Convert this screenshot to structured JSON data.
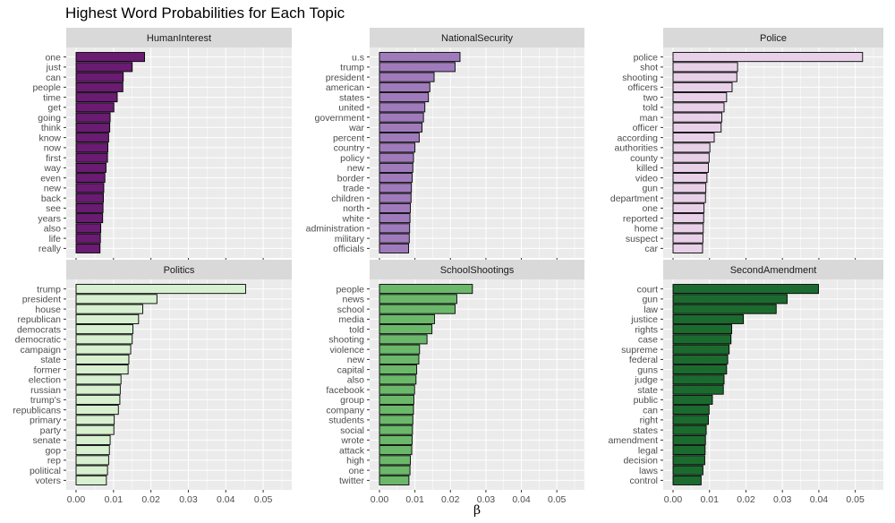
{
  "colors": {
    "panel_bg": "#ebebeb",
    "strip_bg": "#d9d9d9",
    "grid": "#ffffff",
    "bar_outline": "#000000",
    "topic_fills": {
      "HumanInterest": "#6a1b72",
      "NationalSecurity": "#a07bbc",
      "Police": "#e8d1e8",
      "Politics": "#d7f0d0",
      "SchoolShootings": "#6bb86a",
      "SecondAmendment": "#1b6b2f"
    }
  },
  "chart_data": {
    "type": "bar",
    "orientation": "horizontal",
    "title": "Highest Word Probabilities for Each Topic",
    "xlabel": "β",
    "xlim": [
      0,
      0.055
    ],
    "xticks": [
      0.0,
      0.01,
      0.02,
      0.03,
      0.04,
      0.05
    ],
    "xtick_labels": [
      "0.00",
      "0.01",
      "0.02",
      "0.03",
      "0.04",
      "0.05"
    ],
    "grid": true,
    "panels": [
      {
        "topic": "HumanInterest",
        "categories": [
          "one",
          "just",
          "can",
          "people",
          "time",
          "get",
          "going",
          "think",
          "know",
          "now",
          "first",
          "way",
          "even",
          "new",
          "back",
          "see",
          "years",
          "also",
          "life",
          "really"
        ],
        "values": [
          0.0183,
          0.015,
          0.0126,
          0.0125,
          0.011,
          0.0101,
          0.0091,
          0.009,
          0.0087,
          0.0085,
          0.0084,
          0.008,
          0.0077,
          0.0074,
          0.0073,
          0.0072,
          0.0071,
          0.0066,
          0.0065,
          0.0064
        ]
      },
      {
        "topic": "NationalSecurity",
        "categories": [
          "u.s",
          "trump",
          "president",
          "american",
          "states",
          "united",
          "government",
          "war",
          "percent",
          "country",
          "policy",
          "new",
          "border",
          "trade",
          "children",
          "north",
          "white",
          "administration",
          "military",
          "officials"
        ],
        "values": [
          0.0227,
          0.0213,
          0.0154,
          0.0142,
          0.0138,
          0.0128,
          0.0124,
          0.012,
          0.0112,
          0.01,
          0.0096,
          0.0094,
          0.0092,
          0.009,
          0.0089,
          0.0087,
          0.0086,
          0.0085,
          0.0084,
          0.0082
        ]
      },
      {
        "topic": "Police",
        "categories": [
          "police",
          "shot",
          "shooting",
          "officers",
          "two",
          "told",
          "man",
          "officer",
          "according",
          "authorities",
          "county",
          "killed",
          "video",
          "gun",
          "department",
          "one",
          "reported",
          "home",
          "suspect",
          "car"
        ],
        "values": [
          0.052,
          0.0177,
          0.0175,
          0.0162,
          0.0147,
          0.014,
          0.0134,
          0.0132,
          0.0113,
          0.0101,
          0.0099,
          0.0097,
          0.0093,
          0.009,
          0.0089,
          0.0085,
          0.0084,
          0.0083,
          0.0082,
          0.0081
        ]
      },
      {
        "topic": "Politics",
        "categories": [
          "trump",
          "president",
          "house",
          "republican",
          "democrats",
          "democratic",
          "campaign",
          "state",
          "former",
          "election",
          "russian",
          "trump's",
          "republicans",
          "primary",
          "party",
          "senate",
          "gop",
          "rep",
          "political",
          "voters"
        ],
        "values": [
          0.0453,
          0.0216,
          0.0178,
          0.0167,
          0.0152,
          0.015,
          0.0146,
          0.0141,
          0.0139,
          0.012,
          0.0118,
          0.0117,
          0.0113,
          0.0102,
          0.0101,
          0.0091,
          0.0089,
          0.0087,
          0.0084,
          0.0081
        ]
      },
      {
        "topic": "SchoolShootings",
        "categories": [
          "people",
          "news",
          "school",
          "media",
          "told",
          "shooting",
          "violence",
          "new",
          "capital",
          "also",
          "facebook",
          "group",
          "company",
          "students",
          "social",
          "wrote",
          "attack",
          "high",
          "one",
          "twitter"
        ],
        "values": [
          0.0262,
          0.0218,
          0.0213,
          0.0155,
          0.0148,
          0.0134,
          0.0113,
          0.0111,
          0.0105,
          0.0103,
          0.0099,
          0.0097,
          0.0096,
          0.0094,
          0.0093,
          0.0092,
          0.0091,
          0.0087,
          0.0086,
          0.0083
        ]
      },
      {
        "topic": "SecondAmendment",
        "categories": [
          "court",
          "gun",
          "law",
          "justice",
          "rights",
          "case",
          "supreme",
          "federal",
          "guns",
          "judge",
          "state",
          "public",
          "can",
          "right",
          "states",
          "amendment",
          "legal",
          "decision",
          "laws",
          "control"
        ],
        "values": [
          0.0399,
          0.0313,
          0.0283,
          0.0193,
          0.0161,
          0.0159,
          0.0154,
          0.015,
          0.0147,
          0.014,
          0.0138,
          0.0108,
          0.0099,
          0.0097,
          0.0091,
          0.0089,
          0.0088,
          0.0087,
          0.0082,
          0.0077
        ]
      }
    ]
  }
}
